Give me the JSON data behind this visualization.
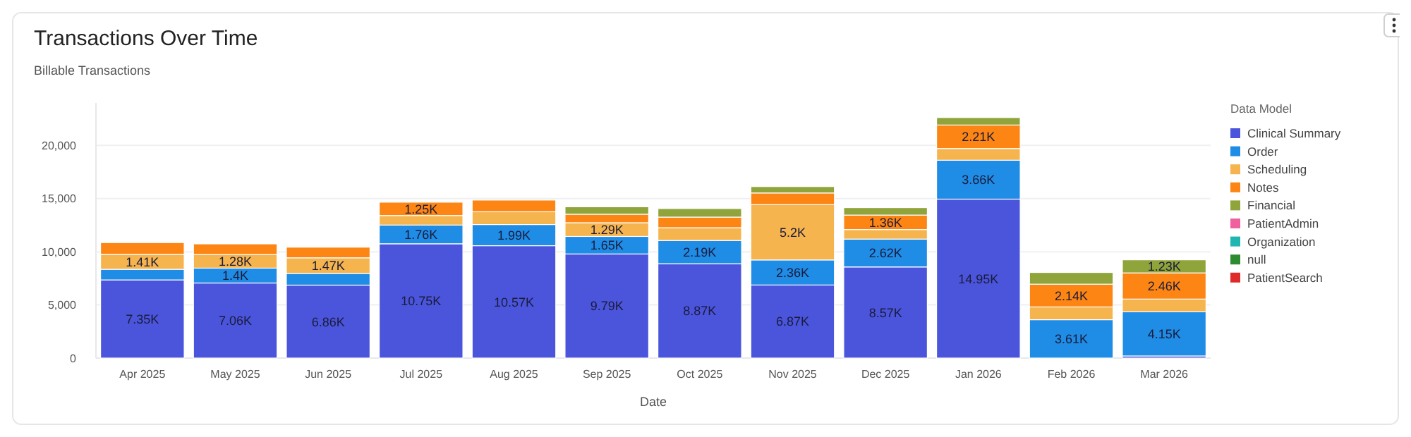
{
  "chart_data": {
    "type": "bar",
    "title": "Transactions Over Time",
    "subtitle": "Billable Transactions",
    "xlabel": "Date",
    "legend_title": "Data Model",
    "stacked": true,
    "grid": "y",
    "legend": "right",
    "categories": [
      "Apr 2025",
      "May 2025",
      "Jun 2025",
      "Jul 2025",
      "Aug 2025",
      "Sep 2025",
      "Oct 2025",
      "Nov 2025",
      "Dec 2025",
      "Jan 2026",
      "Feb 2026",
      "Mar 2026"
    ],
    "ylim": [
      0,
      24000
    ],
    "yticks": [
      0,
      {
        "value": 5000,
        "label": "5,000"
      },
      {
        "value": 10000,
        "label": "10,000"
      },
      {
        "value": 15000,
        "label": "15,000"
      },
      {
        "value": 20000,
        "label": "20,000"
      }
    ],
    "series": [
      {
        "name": "Clinical Summary",
        "color": "#4a55dc",
        "values": [
          7350,
          7060,
          6860,
          10750,
          10570,
          9790,
          8870,
          6870,
          8570,
          14950,
          null,
          200
        ],
        "value_labels": [
          "7.35K",
          "7.06K",
          "6.86K",
          "10.75K",
          "10.57K",
          "9.79K",
          "8.87K",
          "6.87K",
          "8.57K",
          "14.95K",
          null,
          null
        ]
      },
      {
        "name": "Order",
        "color": "#1f8ce6",
        "values": [
          1000,
          1400,
          1100,
          1760,
          1990,
          1650,
          2190,
          2360,
          2620,
          3660,
          3610,
          4150
        ],
        "value_labels": [
          null,
          "1.4K",
          null,
          "1.76K",
          "1.99K",
          "1.65K",
          "2.19K",
          "2.36K",
          "2.62K",
          "3.66K",
          "3.61K",
          "4.15K"
        ]
      },
      {
        "name": "Scheduling",
        "color": "#f5b44e",
        "values": [
          1410,
          1280,
          1470,
          900,
          1200,
          1290,
          1200,
          5200,
          900,
          1100,
          1200,
          1200
        ],
        "value_labels": [
          "1.41K",
          "1.28K",
          "1.47K",
          null,
          null,
          "1.29K",
          null,
          "5.2K",
          null,
          null,
          null,
          null
        ]
      },
      {
        "name": "Notes",
        "color": "#fc8514",
        "values": [
          1100,
          1000,
          1000,
          1250,
          1100,
          800,
          1000,
          1100,
          1360,
          2210,
          2140,
          2460
        ],
        "value_labels": [
          null,
          null,
          null,
          "1.25K",
          null,
          null,
          null,
          null,
          "1.36K",
          "2.21K",
          "2.14K",
          "2.46K"
        ]
      },
      {
        "name": "Financial",
        "color": "#8fa43a",
        "values": [
          null,
          null,
          null,
          null,
          null,
          700,
          800,
          600,
          700,
          700,
          1100,
          1230
        ],
        "value_labels": [
          null,
          null,
          null,
          null,
          null,
          null,
          null,
          null,
          null,
          null,
          null,
          "1.23K"
        ]
      },
      {
        "name": "PatientAdmin",
        "color": "#f0609e",
        "values": [
          null,
          null,
          null,
          null,
          null,
          null,
          null,
          null,
          null,
          null,
          null,
          null
        ]
      },
      {
        "name": "Organization",
        "color": "#1fb5b0",
        "values": [
          null,
          null,
          null,
          null,
          null,
          null,
          null,
          null,
          null,
          null,
          null,
          null
        ]
      },
      {
        "name": "null",
        "color": "#2e8b2e",
        "values": [
          null,
          null,
          null,
          null,
          null,
          null,
          null,
          null,
          null,
          null,
          null,
          null
        ]
      },
      {
        "name": "PatientSearch",
        "color": "#e02a2a",
        "values": [
          null,
          null,
          null,
          null,
          null,
          null,
          null,
          null,
          null,
          null,
          null,
          null
        ]
      }
    ]
  }
}
